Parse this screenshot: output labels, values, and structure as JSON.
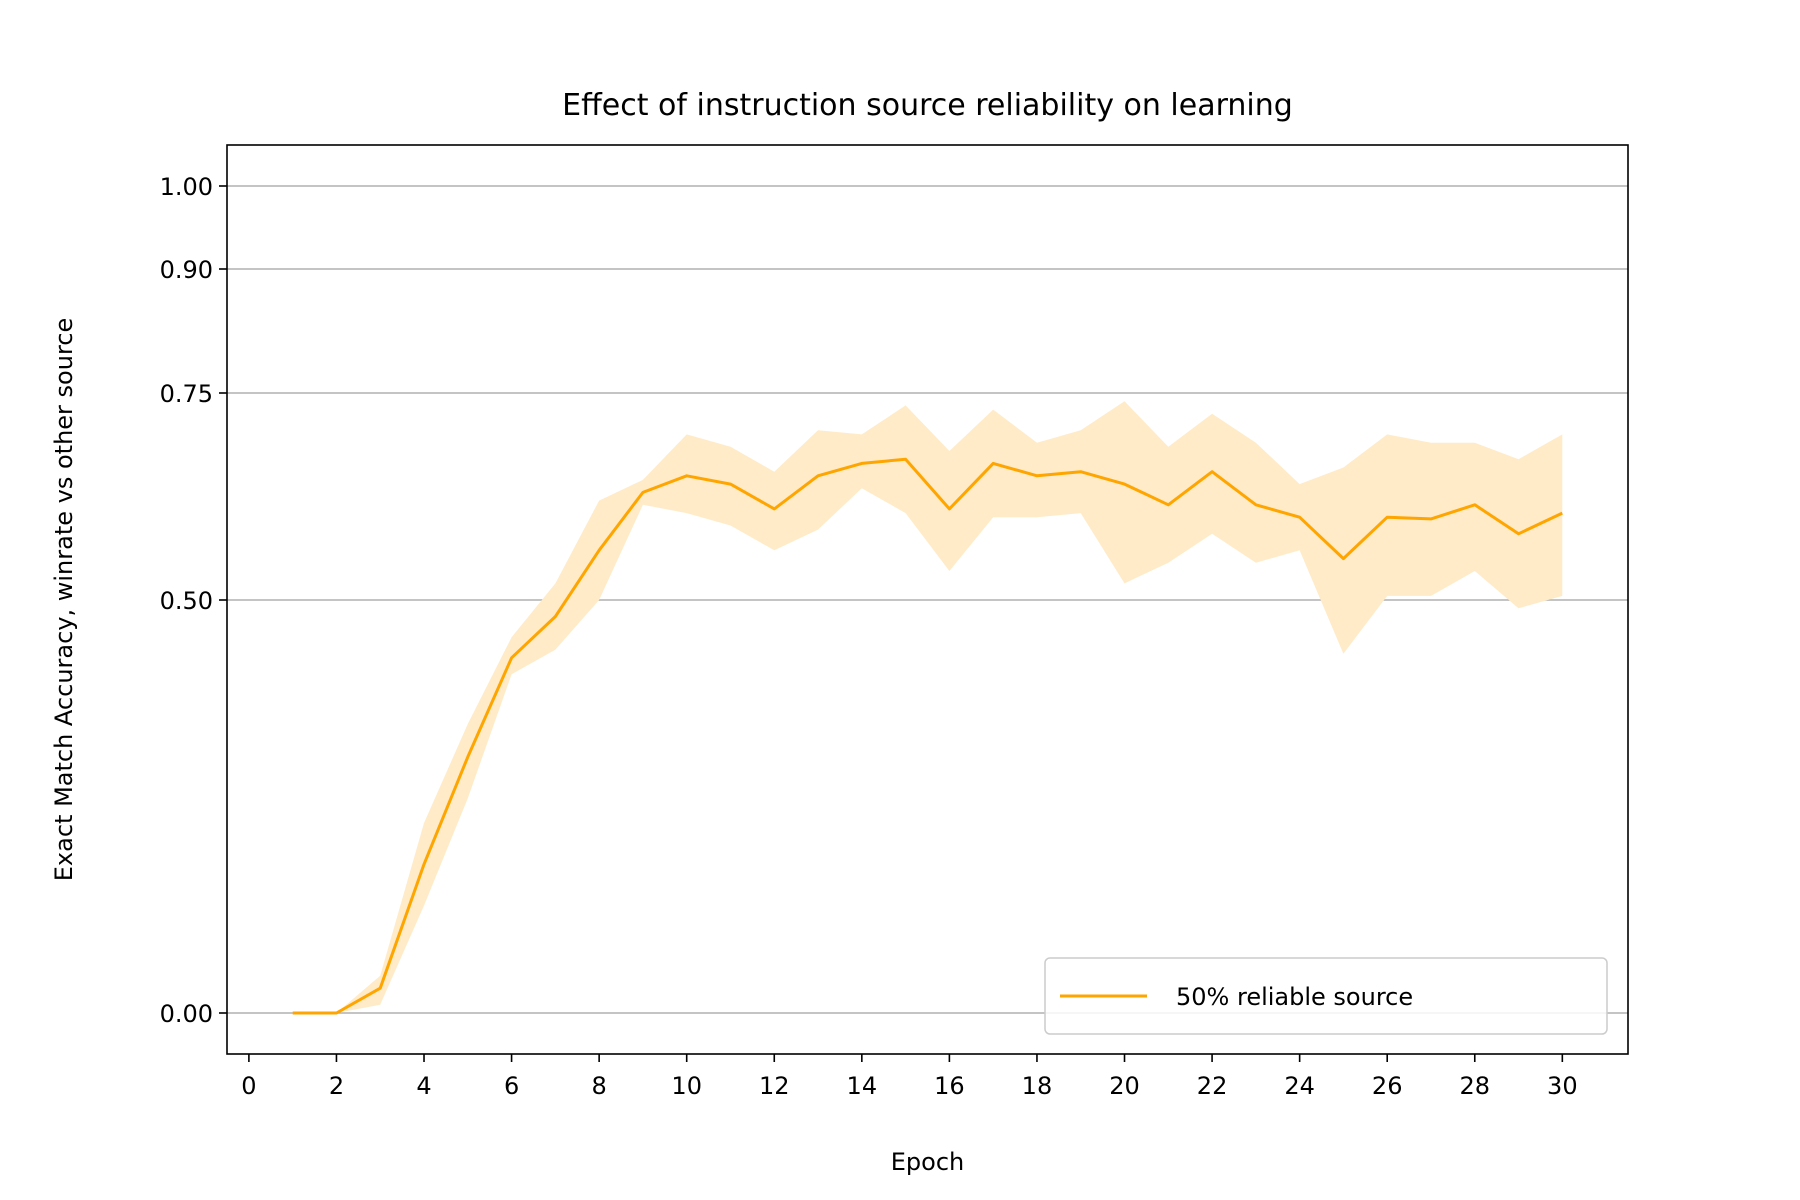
{
  "chart_data": {
    "type": "line",
    "title": "Effect of instruction source reliability on learning",
    "xlabel": "Epoch",
    "ylabel": "Exact Match Accuracy, winrate vs other source",
    "xlim": [
      -0.5,
      31.5
    ],
    "ylim": [
      -0.05,
      1.05
    ],
    "x_ticks": [
      0,
      2,
      4,
      6,
      8,
      10,
      12,
      14,
      16,
      18,
      20,
      22,
      24,
      26,
      28,
      30
    ],
    "y_ticks": [
      0.0,
      0.5,
      0.75,
      0.9,
      1.0
    ],
    "y_tick_labels": [
      "0.00",
      "0.50",
      "0.75",
      "0.90",
      "1.00"
    ],
    "grid": "horizontal",
    "legend_position": "lower-right",
    "series": [
      {
        "name": "50% reliable source",
        "color": "#ffa500",
        "band_color": "#ffebc8",
        "x": [
          1,
          2,
          3,
          4,
          5,
          6,
          7,
          8,
          9,
          10,
          11,
          12,
          13,
          14,
          15,
          16,
          17,
          18,
          19,
          20,
          21,
          22,
          23,
          24,
          25,
          26,
          27,
          28,
          29,
          30
        ],
        "y": [
          0.0,
          0.0,
          0.03,
          0.18,
          0.31,
          0.43,
          0.48,
          0.56,
          0.63,
          0.65,
          0.64,
          0.61,
          0.65,
          0.665,
          0.67,
          0.61,
          0.665,
          0.65,
          0.655,
          0.64,
          0.615,
          0.655,
          0.615,
          0.6,
          0.55,
          0.6,
          0.598,
          0.615,
          0.58,
          0.605
        ],
        "lower": [
          0.0,
          0.0,
          0.01,
          0.13,
          0.26,
          0.41,
          0.44,
          0.5,
          0.615,
          0.605,
          0.59,
          0.56,
          0.585,
          0.635,
          0.605,
          0.535,
          0.6,
          0.6,
          0.605,
          0.52,
          0.545,
          0.58,
          0.545,
          0.56,
          0.435,
          0.505,
          0.505,
          0.535,
          0.49,
          0.505
        ],
        "upper": [
          0.0,
          0.0,
          0.045,
          0.23,
          0.35,
          0.455,
          0.52,
          0.62,
          0.645,
          0.7,
          0.685,
          0.655,
          0.705,
          0.7,
          0.735,
          0.68,
          0.73,
          0.69,
          0.705,
          0.74,
          0.685,
          0.725,
          0.69,
          0.64,
          0.66,
          0.7,
          0.69,
          0.69,
          0.67,
          0.7
        ]
      }
    ]
  }
}
